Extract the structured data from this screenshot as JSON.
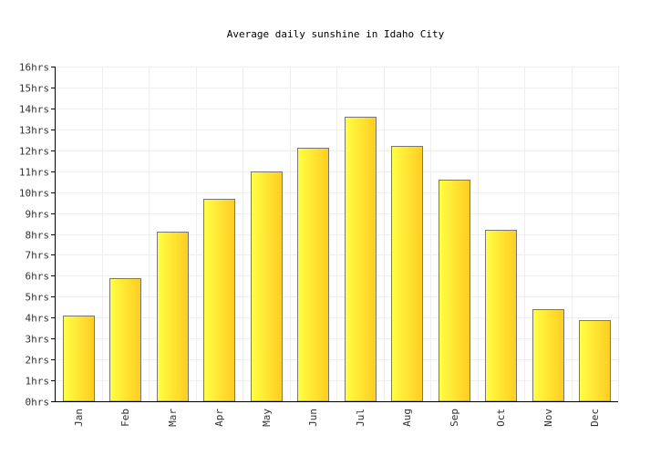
{
  "chart_data": {
    "type": "bar",
    "title": "Average daily sunshine in Idaho City",
    "xlabel": "",
    "ylabel": "",
    "categories": [
      "Jan",
      "Feb",
      "Mar",
      "Apr",
      "May",
      "Jun",
      "Jul",
      "Aug",
      "Sep",
      "Oct",
      "Nov",
      "Dec"
    ],
    "values": [
      4.1,
      5.9,
      8.1,
      9.7,
      11.0,
      12.1,
      13.6,
      12.2,
      10.6,
      8.2,
      4.4,
      3.9
    ],
    "ylim": [
      0,
      16
    ],
    "yticks": [
      0,
      1,
      2,
      3,
      4,
      5,
      6,
      7,
      8,
      9,
      10,
      11,
      12,
      13,
      14,
      15,
      16
    ],
    "ytick_labels": [
      "0hrs",
      "1hrs",
      "2hrs",
      "3hrs",
      "4hrs",
      "5hrs",
      "6hrs",
      "7hrs",
      "8hrs",
      "9hrs",
      "10hrs",
      "11hrs",
      "12hrs",
      "13hrs",
      "14hrs",
      "15hrs",
      "16hrs"
    ],
    "grid": true,
    "legend": "none",
    "colors": {
      "bar_light": "#ffff44",
      "bar_dark": "#ffcc22",
      "bar_stroke": "#777777",
      "grid": "#eeeeee",
      "axis": "#000000"
    }
  }
}
